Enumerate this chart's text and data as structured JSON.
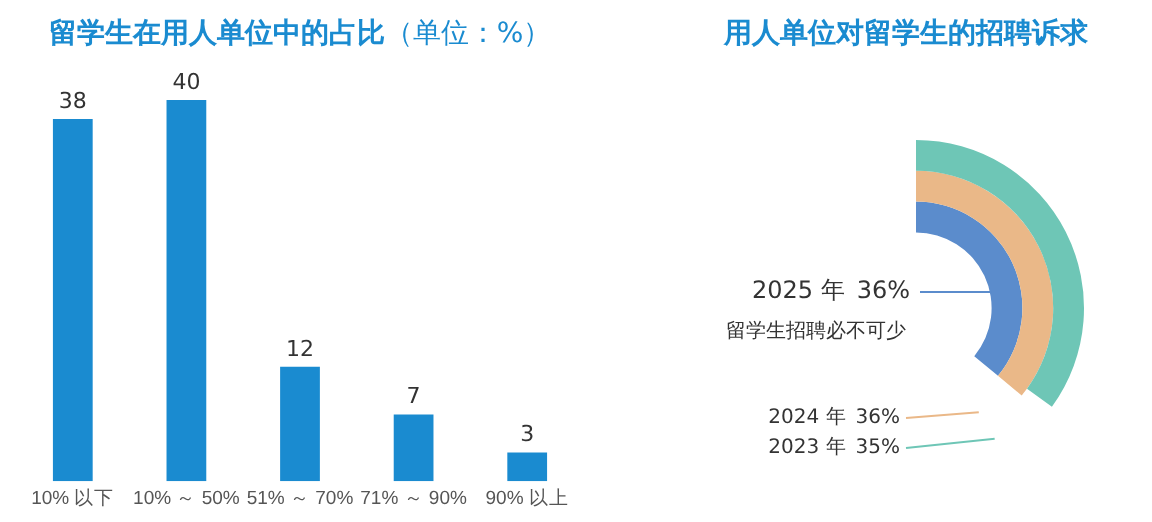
{
  "chart_data": [
    {
      "type": "bar",
      "title": "留学生在用人单位中的占比",
      "subtitle": "（单位：%）",
      "categories": [
        "10% 以下",
        "10% ～ 50%",
        "51% ～ 70%",
        "71% ～ 90%",
        "90% 以上"
      ],
      "values": [
        38,
        40,
        12,
        7,
        3
      ],
      "color": "#1a8bd0",
      "data_labels": true,
      "tick_labels": "x",
      "grid": false,
      "legend": false
    },
    {
      "type": "other",
      "title": "用人单位对留学生的招聘诉求",
      "categories": [
        "2025 年",
        "2024 年",
        "2023 年"
      ],
      "values": [
        36,
        36,
        35
      ],
      "value_labels": [
        "36%",
        "36%",
        "35%"
      ],
      "colors": [
        "#5b8ccc",
        "#eab888",
        "#6ec6b6"
      ],
      "annotations": [
        "留学生招聘必不可少"
      ]
    }
  ]
}
